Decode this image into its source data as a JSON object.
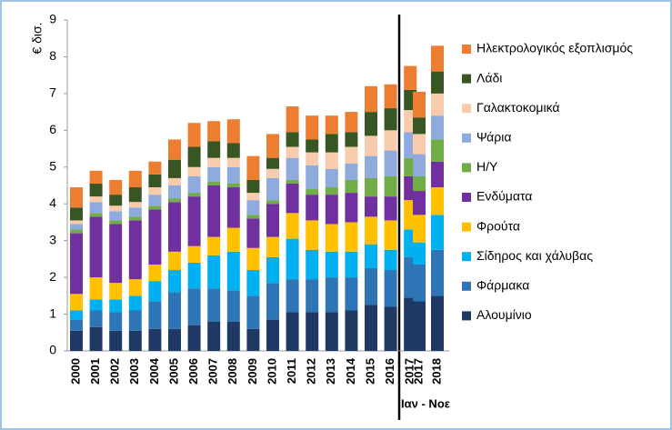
{
  "chart_data": {
    "type": "stacked_bar",
    "ylabel": "€ δισ.",
    "annotations": [
      "Ιαν - Νοε"
    ],
    "categories": [
      "2000",
      "2001",
      "2002",
      "2003",
      "2004",
      "2005",
      "2006",
      "2007",
      "2008",
      "2009",
      "2010",
      "2011",
      "2012",
      "2013",
      "2014",
      "2015",
      "2016",
      "2017",
      "2017",
      "2018"
    ],
    "ylim": [
      0,
      9
    ],
    "yticks": [
      0,
      1,
      2,
      3,
      4,
      5,
      6,
      7,
      8,
      9
    ],
    "series": [
      {
        "name": "Αλουμίνιο",
        "color": "#1f3864",
        "values": [
          0.55,
          0.65,
          0.55,
          0.55,
          0.6,
          0.6,
          0.7,
          0.8,
          0.8,
          0.6,
          0.85,
          1.05,
          1.05,
          1.05,
          1.1,
          1.25,
          1.2,
          1.45,
          1.35,
          1.5
        ]
      },
      {
        "name": "Φάρμακα",
        "color": "#2e75b6",
        "values": [
          0.3,
          0.45,
          0.5,
          0.55,
          0.75,
          1.0,
          1.0,
          0.9,
          0.85,
          0.9,
          1.0,
          0.9,
          0.9,
          0.95,
          0.9,
          1.0,
          1.0,
          1.1,
          1.0,
          1.25
        ]
      },
      {
        "name": "Σίδηρος και χάλυβας",
        "color": "#00b0f0",
        "values": [
          0.25,
          0.3,
          0.35,
          0.4,
          0.55,
          0.6,
          0.7,
          0.9,
          1.05,
          0.7,
          0.7,
          1.1,
          0.8,
          0.7,
          0.7,
          0.65,
          0.55,
          0.75,
          0.6,
          0.95
        ]
      },
      {
        "name": "Φρούτα",
        "color": "#ffc000",
        "values": [
          0.45,
          0.6,
          0.45,
          0.45,
          0.45,
          0.5,
          0.45,
          0.5,
          0.65,
          0.6,
          0.55,
          0.7,
          0.8,
          0.75,
          0.8,
          0.75,
          0.8,
          0.8,
          0.75,
          0.75
        ]
      },
      {
        "name": "Ενδύματα",
        "color": "#7030a0",
        "values": [
          1.65,
          1.65,
          1.6,
          1.6,
          1.5,
          1.35,
          1.35,
          1.4,
          1.1,
          0.8,
          0.9,
          0.8,
          0.7,
          0.8,
          0.8,
          0.55,
          0.65,
          0.65,
          0.65,
          0.7
        ]
      },
      {
        "name": "Η/Υ",
        "color": "#70ad47",
        "values": [
          0.1,
          0.1,
          0.1,
          0.1,
          0.1,
          0.1,
          0.1,
          0.1,
          0.1,
          0.1,
          0.1,
          0.1,
          0.15,
          0.2,
          0.35,
          0.5,
          0.55,
          0.5,
          0.4,
          0.6
        ]
      },
      {
        "name": "Ψάρια",
        "color": "#8faadc",
        "values": [
          0.15,
          0.3,
          0.25,
          0.25,
          0.3,
          0.35,
          0.45,
          0.4,
          0.45,
          0.4,
          0.6,
          0.6,
          0.65,
          0.5,
          0.45,
          0.6,
          0.7,
          0.7,
          0.6,
          0.65
        ]
      },
      {
        "name": "Γαλακτοκομικά",
        "color": "#f8cbad",
        "values": [
          0.1,
          0.15,
          0.15,
          0.15,
          0.2,
          0.2,
          0.25,
          0.25,
          0.25,
          0.2,
          0.25,
          0.3,
          0.35,
          0.45,
          0.45,
          0.55,
          0.55,
          0.6,
          0.55,
          0.6
        ]
      },
      {
        "name": "Λάδι",
        "color": "#375623",
        "values": [
          0.35,
          0.35,
          0.3,
          0.4,
          0.35,
          0.5,
          0.55,
          0.45,
          0.4,
          0.35,
          0.3,
          0.4,
          0.35,
          0.5,
          0.4,
          0.65,
          0.6,
          0.55,
          0.45,
          0.6
        ]
      },
      {
        "name": "Ηλεκτρολογικός εξοπλισμός",
        "color": "#ed7d31",
        "values": [
          0.55,
          0.35,
          0.4,
          0.45,
          0.35,
          0.55,
          0.65,
          0.55,
          0.65,
          0.65,
          0.65,
          0.7,
          0.65,
          0.5,
          0.55,
          0.7,
          0.65,
          0.65,
          0.7,
          0.7
        ]
      }
    ]
  }
}
